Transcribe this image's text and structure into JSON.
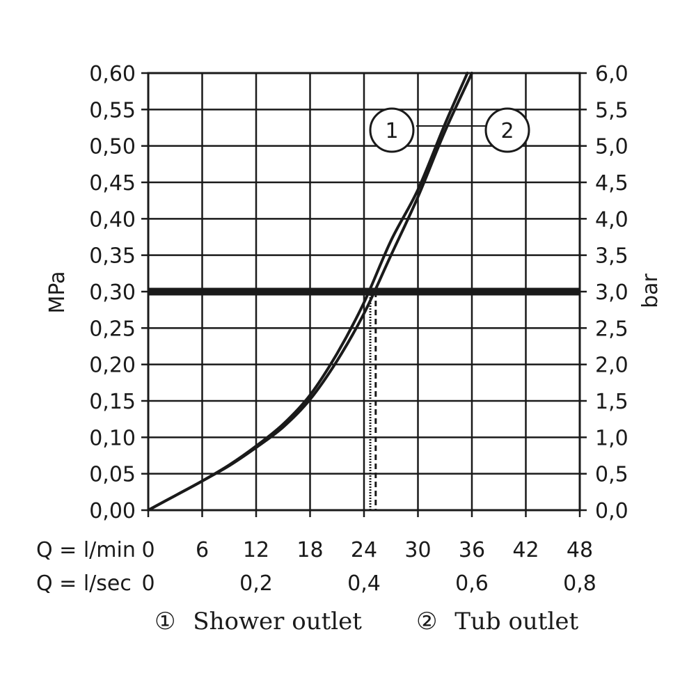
{
  "chart_data": {
    "type": "line",
    "title": "",
    "left_axis": {
      "label": "MPa",
      "range": [
        0,
        0.6
      ],
      "ticks": [
        "0,00",
        "0,05",
        "0,10",
        "0,15",
        "0,20",
        "0,25",
        "0,30",
        "0,35",
        "0,40",
        "0,45",
        "0,50",
        "0,55",
        "0,60"
      ]
    },
    "right_axis": {
      "label": "bar",
      "range": [
        0,
        6
      ],
      "ticks": [
        "0,0",
        "0,5",
        "1,0",
        "1,5",
        "2,0",
        "2,5",
        "3,0",
        "3,5",
        "4,0",
        "4,5",
        "5,0",
        "5,5",
        "6,0"
      ]
    },
    "x_axis_lmin": {
      "label": "Q = l/min",
      "range": [
        0,
        48
      ],
      "ticks": [
        {
          "value": 0,
          "label": "0"
        },
        {
          "value": 6,
          "label": "6"
        },
        {
          "value": 12,
          "label": "12"
        },
        {
          "value": 18,
          "label": "18"
        },
        {
          "value": 24,
          "label": "24"
        },
        {
          "value": 30,
          "label": "30"
        },
        {
          "value": 36,
          "label": "36"
        },
        {
          "value": 42,
          "label": "42"
        },
        {
          "value": 48,
          "label": "48"
        }
      ]
    },
    "x_axis_lsec": {
      "label": "Q = l/sec",
      "ticks": [
        {
          "value": 0,
          "label": "0"
        },
        {
          "value": 12,
          "label": "0,2"
        },
        {
          "value": 24,
          "label": "0,4"
        },
        {
          "value": 36,
          "label": "0,6"
        },
        {
          "value": 48,
          "label": "0,8"
        }
      ]
    },
    "grid": true,
    "reference_line": {
      "y": 0.3
    },
    "series": [
      {
        "name": "Shower outlet",
        "marker": "1",
        "x": [
          0,
          3,
          6,
          9,
          12,
          15,
          18,
          21,
          24,
          27,
          30,
          33,
          35.5
        ],
        "y": [
          0,
          0.02,
          0.04,
          0.062,
          0.088,
          0.118,
          0.158,
          0.215,
          0.285,
          0.37,
          0.44,
          0.53,
          0.6
        ],
        "reading_at_0_30_MPa": 24.7
      },
      {
        "name": "Tub outlet",
        "marker": "2",
        "x": [
          0,
          3,
          6,
          9,
          12,
          15,
          18,
          21,
          24,
          27,
          30,
          33,
          36
        ],
        "y": [
          0,
          0.02,
          0.04,
          0.061,
          0.086,
          0.114,
          0.152,
          0.205,
          0.27,
          0.35,
          0.43,
          0.52,
          0.6
        ],
        "reading_at_0_30_MPa": 25.3
      }
    ],
    "legend": {
      "placement": "bottom",
      "items": [
        {
          "marker": "①",
          "text": "Shower outlet"
        },
        {
          "marker": "②",
          "text": "Tub outlet"
        }
      ]
    },
    "callout": {
      "left": "1",
      "right": "2"
    }
  }
}
